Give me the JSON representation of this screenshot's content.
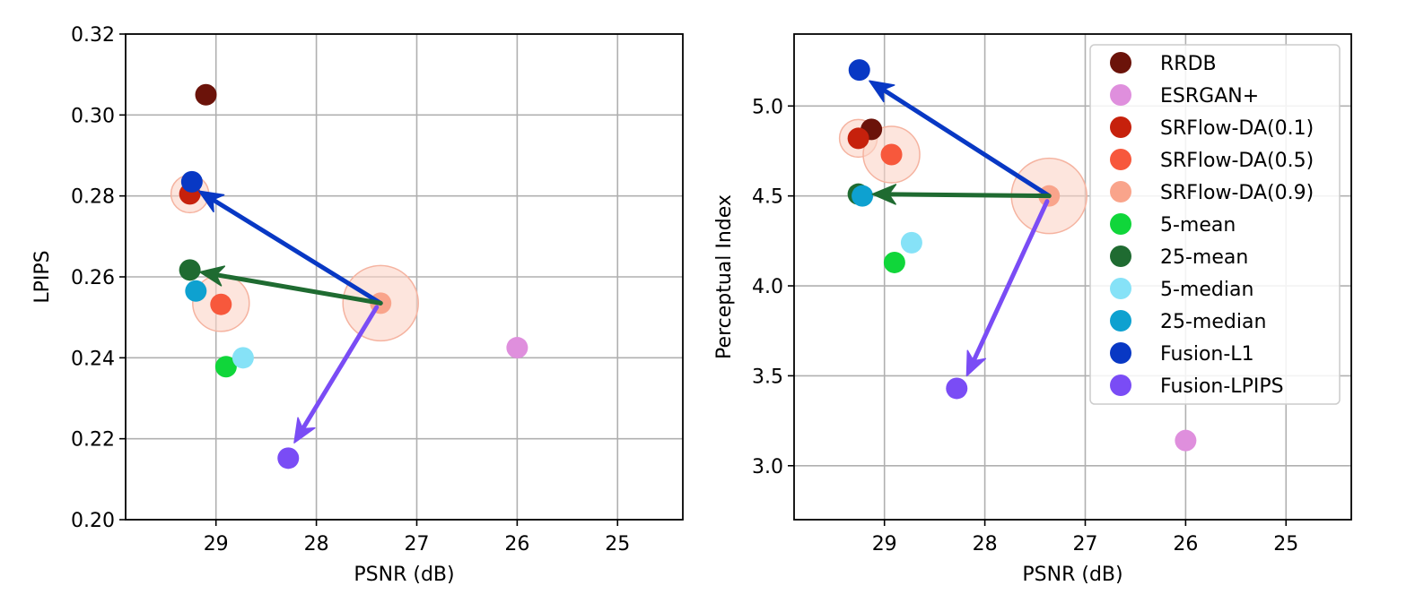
{
  "chart_data": [
    {
      "type": "scatter",
      "name": "lpips",
      "xlabel": "PSNR (dB)",
      "ylabel": "LPIPS",
      "xlim": [
        29.9,
        24.35
      ],
      "ylim": [
        0.2,
        0.32
      ],
      "xticks": [
        "29",
        "28",
        "27",
        "26",
        "25"
      ],
      "xtick_values": [
        29,
        28,
        27,
        26,
        25
      ],
      "yticks": [
        "0.20",
        "0.22",
        "0.24",
        "0.26",
        "0.28",
        "0.30",
        "0.32"
      ],
      "ytick_values": [
        0.2,
        0.22,
        0.24,
        0.26,
        0.28,
        0.3,
        0.32
      ],
      "grid": true,
      "halos": [
        {
          "series": "SRFlow-DA(0.1)",
          "x": 29.26,
          "y": 0.2805,
          "scale": 1.0
        },
        {
          "series": "SRFlow-DA(0.5)",
          "x": 28.95,
          "y": 0.2535,
          "scale": 1.5
        },
        {
          "series": "SRFlow-DA(0.9)",
          "x": 27.36,
          "y": 0.2535,
          "scale": 2.0
        }
      ],
      "series": [
        {
          "name": "RRDB",
          "x": 29.1,
          "y": 0.305
        },
        {
          "name": "ESRGAN+",
          "x": 26.0,
          "y": 0.2425
        },
        {
          "name": "SRFlow-DA(0.1)",
          "x": 29.26,
          "y": 0.2805
        },
        {
          "name": "SRFlow-DA(0.5)",
          "x": 28.95,
          "y": 0.2532
        },
        {
          "name": "SRFlow-DA(0.9)",
          "x": 27.36,
          "y": 0.2535
        },
        {
          "name": "5-mean",
          "x": 28.9,
          "y": 0.2378
        },
        {
          "name": "25-mean",
          "x": 29.26,
          "y": 0.2617
        },
        {
          "name": "5-median",
          "x": 28.73,
          "y": 0.24
        },
        {
          "name": "25-median",
          "x": 29.2,
          "y": 0.2565
        },
        {
          "name": "Fusion-L1",
          "x": 29.24,
          "y": 0.2835
        },
        {
          "name": "Fusion-LPIPS",
          "x": 28.28,
          "y": 0.2152
        }
      ],
      "arrows": [
        {
          "series": "Fusion-L1",
          "from": [
            27.36,
            0.2535
          ],
          "to": [
            29.17,
            0.2812
          ]
        },
        {
          "series": "25-mean",
          "from": [
            27.36,
            0.2535
          ],
          "to": [
            29.16,
            0.2612
          ]
        },
        {
          "series": "Fusion-LPIPS",
          "from": [
            27.4,
            0.2525
          ],
          "to": [
            28.22,
            0.219
          ]
        }
      ]
    },
    {
      "type": "scatter",
      "name": "perceptual-index",
      "xlabel": "PSNR (dB)",
      "ylabel": "Perceptual Index",
      "xlim": [
        29.9,
        24.35
      ],
      "ylim": [
        2.7,
        5.4
      ],
      "xticks": [
        "29",
        "28",
        "27",
        "26",
        "25"
      ],
      "xtick_values": [
        29,
        28,
        27,
        26,
        25
      ],
      "yticks": [
        "3.0",
        "3.5",
        "4.0",
        "4.5",
        "5.0"
      ],
      "ytick_values": [
        3.0,
        3.5,
        4.0,
        4.5,
        5.0
      ],
      "grid": true,
      "legend_position": "top-right",
      "halos": [
        {
          "series": "SRFlow-DA(0.1)",
          "x": 29.26,
          "y": 4.82,
          "scale": 1.0
        },
        {
          "series": "SRFlow-DA(0.5)",
          "x": 28.93,
          "y": 4.73,
          "scale": 1.5
        },
        {
          "series": "SRFlow-DA(0.9)",
          "x": 27.36,
          "y": 4.5,
          "scale": 2.0
        }
      ],
      "series": [
        {
          "name": "RRDB",
          "x": 29.13,
          "y": 4.87
        },
        {
          "name": "ESRGAN+",
          "x": 26.0,
          "y": 3.14
        },
        {
          "name": "SRFlow-DA(0.1)",
          "x": 29.26,
          "y": 4.82
        },
        {
          "name": "SRFlow-DA(0.5)",
          "x": 28.93,
          "y": 4.73
        },
        {
          "name": "SRFlow-DA(0.9)",
          "x": 27.36,
          "y": 4.5
        },
        {
          "name": "5-mean",
          "x": 28.9,
          "y": 4.13
        },
        {
          "name": "25-mean",
          "x": 29.26,
          "y": 4.51
        },
        {
          "name": "5-median",
          "x": 28.73,
          "y": 4.24
        },
        {
          "name": "25-median",
          "x": 29.22,
          "y": 4.5
        },
        {
          "name": "Fusion-L1",
          "x": 29.25,
          "y": 5.2
        },
        {
          "name": "Fusion-LPIPS",
          "x": 28.28,
          "y": 3.43
        }
      ],
      "arrows": [
        {
          "series": "Fusion-L1",
          "from": [
            27.36,
            4.5
          ],
          "to": [
            29.15,
            5.14
          ]
        },
        {
          "series": "25-mean",
          "from": [
            27.36,
            4.5
          ],
          "to": [
            29.12,
            4.51
          ]
        },
        {
          "series": "Fusion-LPIPS",
          "from": [
            27.38,
            4.47
          ],
          "to": [
            28.18,
            3.5
          ]
        }
      ]
    }
  ],
  "legend": [
    {
      "label": "RRDB",
      "color": "#6b130a"
    },
    {
      "label": "ESRGAN+",
      "color": "#df8fdd"
    },
    {
      "label": "SRFlow-DA(0.1)",
      "color": "#c6210c"
    },
    {
      "label": "SRFlow-DA(0.5)",
      "color": "#f7583c"
    },
    {
      "label": "SRFlow-DA(0.9)",
      "color": "#f9a48b"
    },
    {
      "label": "5-mean",
      "color": "#10d63a"
    },
    {
      "label": "25-mean",
      "color": "#1f6b31"
    },
    {
      "label": "5-median",
      "color": "#86e2f7"
    },
    {
      "label": "25-median",
      "color": "#0ea1d0"
    },
    {
      "label": "Fusion-L1",
      "color": "#0838c4"
    },
    {
      "label": "Fusion-LPIPS",
      "color": "#7a4cf5"
    }
  ],
  "colors": {
    "halo_fill": "#fbd3c7",
    "halo_stroke": "#f5b3a0"
  }
}
